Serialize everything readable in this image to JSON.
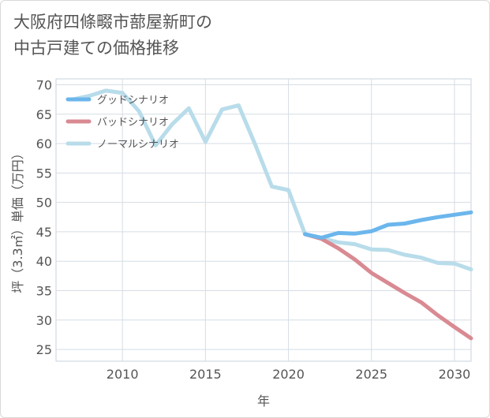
{
  "title_lines": [
    "大阪府四條畷市蔀屋新町の",
    "中古戸建ての価格推移"
  ],
  "chart_data": {
    "type": "line",
    "xlabel": "年",
    "ylabel": "坪（3.3㎡）単価（万円）",
    "xlim": [
      2006,
      2031
    ],
    "ylim": [
      23,
      71
    ],
    "xticks": [
      2010,
      2015,
      2020,
      2025,
      2030
    ],
    "yticks": [
      25,
      30,
      35,
      40,
      45,
      50,
      55,
      60,
      65,
      70
    ],
    "grid": true,
    "legend_position": "top-left",
    "series": [
      {
        "name": "グッドシナリオ",
        "color": "#6bb6ec",
        "x": [
          2021,
          2022,
          2023,
          2024,
          2025,
          2026,
          2027,
          2028,
          2029,
          2030,
          2031
        ],
        "y": [
          44.6,
          44.0,
          44.8,
          44.7,
          45.1,
          46.2,
          46.4,
          47.0,
          47.5,
          47.9,
          48.3
        ]
      },
      {
        "name": "バッドシナリオ",
        "color": "#d98a92",
        "x": [
          2021,
          2022,
          2023,
          2024,
          2025,
          2026,
          2027,
          2028,
          2029,
          2030,
          2031
        ],
        "y": [
          44.6,
          43.8,
          42.2,
          40.3,
          38.0,
          36.3,
          34.6,
          33.0,
          30.8,
          28.8,
          26.9
        ]
      },
      {
        "name": "ノーマルシナリオ",
        "color": "#b8dcea",
        "x": [
          2007,
          2008,
          2009,
          2010,
          2011,
          2012,
          2013,
          2014,
          2015,
          2016,
          2017,
          2018,
          2019,
          2020,
          2021,
          2022,
          2023,
          2024,
          2025,
          2026,
          2027,
          2028,
          2029,
          2030,
          2031
        ],
        "y": [
          67.5,
          68.1,
          69.0,
          68.6,
          65.5,
          59.7,
          63.3,
          66.0,
          60.3,
          65.8,
          66.5,
          59.8,
          52.7,
          52.1,
          44.6,
          43.9,
          43.2,
          42.9,
          42.0,
          41.9,
          41.1,
          40.6,
          39.7,
          39.6,
          38.6
        ]
      }
    ]
  }
}
